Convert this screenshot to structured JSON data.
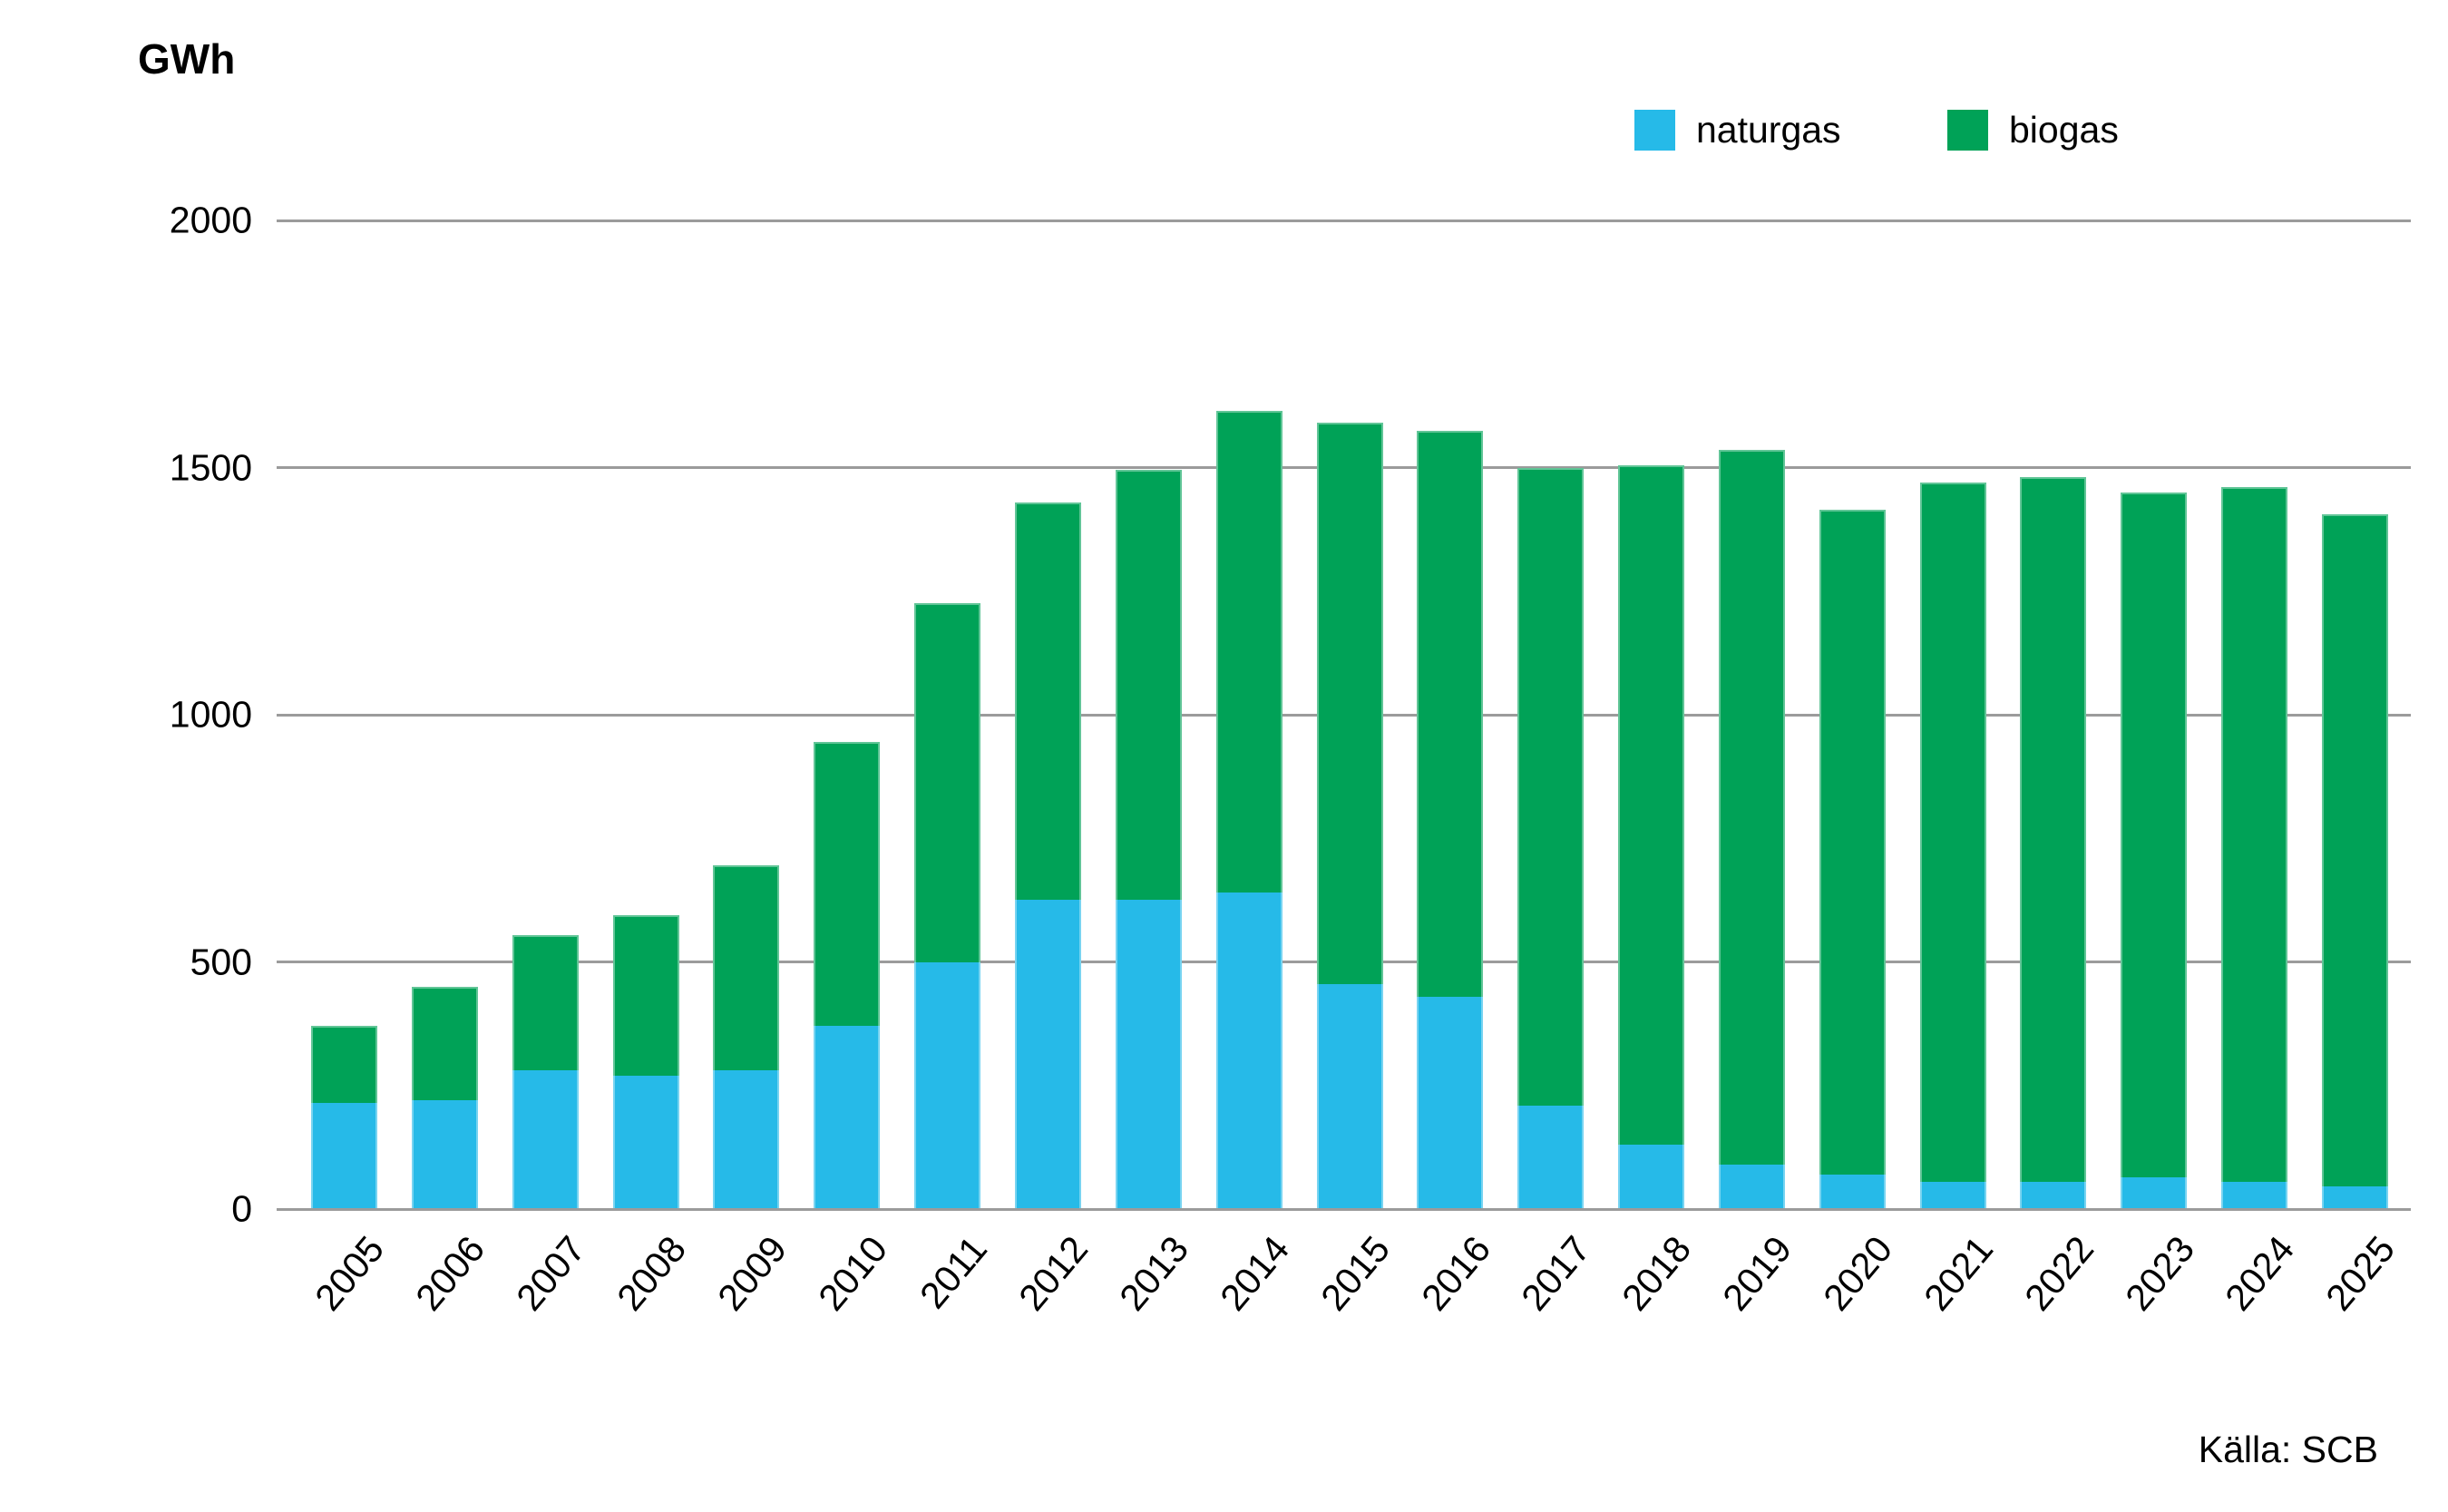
{
  "title": "GWh",
  "source": "Källa: SCB",
  "colors": {
    "naturgas": "#26BAE8",
    "biogas": "#00A257",
    "gridline": "#9b9b9b",
    "text": "#000000",
    "background": "#ffffff"
  },
  "legend": {
    "position": "top-right",
    "items": [
      {
        "label": "naturgas",
        "color": "#26BAE8"
      },
      {
        "label": "biogas",
        "color": "#00A257"
      }
    ]
  },
  "chart_data": {
    "type": "bar",
    "stacked": true,
    "title": "GWh",
    "xlabel": "",
    "ylabel": "GWh",
    "ylim": [
      0,
      2000
    ],
    "yticks": [
      0,
      500,
      1000,
      1500,
      2000
    ],
    "grid": "horizontal",
    "legend_position": "top-right",
    "source": "Källa: SCB",
    "categories": [
      "2005",
      "2006",
      "2007",
      "2008",
      "2009",
      "2010",
      "2011",
      "2012",
      "2013",
      "2014",
      "2015",
      "2016",
      "2017",
      "2018",
      "2019",
      "2020",
      "2021",
      "2022",
      "2023",
      "2024",
      "2025"
    ],
    "series": [
      {
        "name": "naturgas",
        "color": "#26BAE8",
        "values": [
          215,
          220,
          280,
          270,
          280,
          370,
          500,
          625,
          625,
          640,
          455,
          430,
          210,
          130,
          90,
          70,
          55,
          55,
          65,
          55,
          45
        ]
      },
      {
        "name": "biogas",
        "color": "#00A257",
        "values": [
          155,
          230,
          275,
          325,
          415,
          575,
          725,
          805,
          870,
          975,
          1135,
          1145,
          1290,
          1375,
          1445,
          1345,
          1415,
          1425,
          1385,
          1405,
          1360
        ]
      }
    ],
    "totals": [
      370,
      450,
      555,
      595,
      695,
      945,
      1225,
      1430,
      1495,
      1615,
      1590,
      1575,
      1500,
      1505,
      1535,
      1415,
      1470,
      1480,
      1450,
      1460,
      1405
    ]
  }
}
